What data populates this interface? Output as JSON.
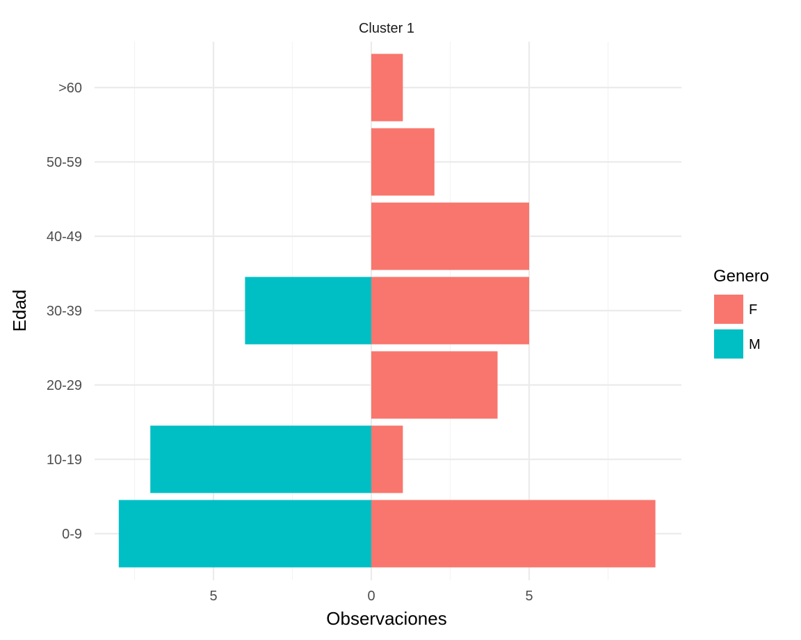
{
  "chart_data": {
    "type": "bar",
    "orientation": "horizontal",
    "facet_title": "Cluster 1",
    "xlabel": "Observaciones",
    "ylabel": "Edad",
    "categories": [
      "0-9",
      "10-19",
      "20-29",
      "30-39",
      "40-49",
      "50-59",
      ">60"
    ],
    "x_tick_labels": [
      "5",
      "0",
      "5"
    ],
    "xlim": [
      -8.9,
      9.6
    ],
    "grid": true,
    "legend": {
      "title": "Genero",
      "position": "right"
    },
    "series": [
      {
        "name": "F",
        "color": "#F8766D",
        "values": [
          9,
          1,
          4,
          5,
          5,
          2,
          1
        ]
      },
      {
        "name": "M",
        "color": "#00BFC4",
        "values": [
          8,
          7,
          0,
          4,
          0,
          0,
          0
        ]
      }
    ]
  }
}
